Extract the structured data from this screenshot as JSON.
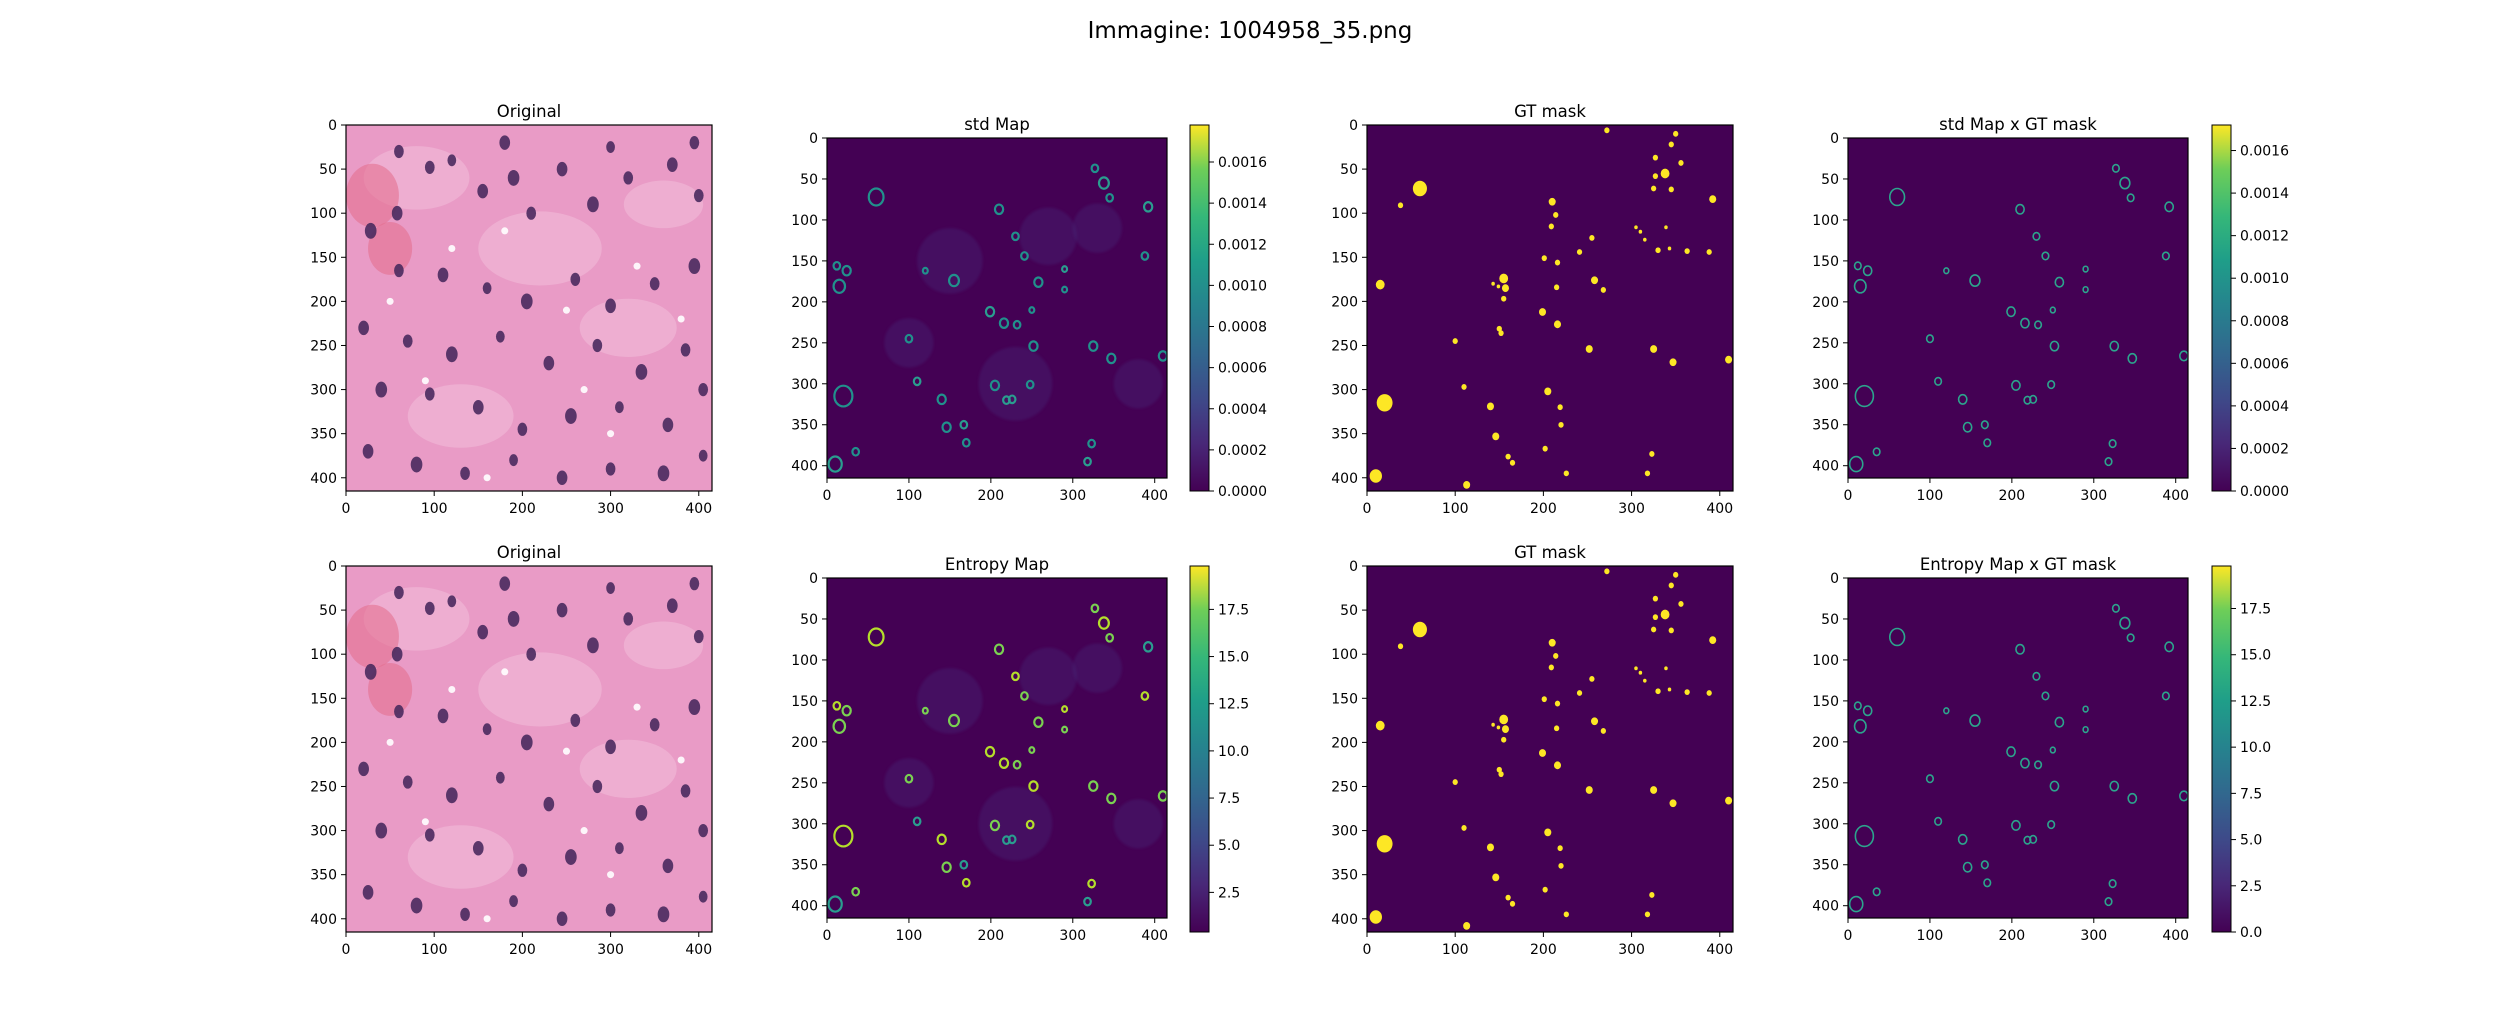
{
  "figure": {
    "suptitle": "Immagine: 1004958_35.png"
  },
  "colors": {
    "viridis_low": "#440154",
    "viridis_mid": "#21918c",
    "viridis_high": "#fde725",
    "he_background": "#e99bc6",
    "he_nuclei": "#4a2a5e"
  },
  "chart_data": [
    {
      "type": "heatmap",
      "id": "r0c0",
      "title": "Original",
      "xlim": [
        0,
        415
      ],
      "ylim": [
        415,
        0
      ],
      "xticks": [
        0,
        100,
        200,
        300,
        400
      ],
      "yticks": [
        0,
        50,
        100,
        150,
        200,
        250,
        300,
        350,
        400
      ],
      "image": "H&E histology tile"
    },
    {
      "type": "heatmap",
      "id": "r0c1",
      "title": "std Map",
      "xlim": [
        0,
        415
      ],
      "ylim": [
        415,
        0
      ],
      "xticks": [
        0,
        100,
        200,
        300,
        400
      ],
      "yticks": [
        0,
        50,
        100,
        150,
        200,
        250,
        300,
        350,
        400
      ],
      "colormap": "viridis",
      "colorbar": {
        "range": [
          0,
          0.00178
        ],
        "ticks": [
          "0.0000",
          "0.0002",
          "0.0004",
          "0.0006",
          "0.0008",
          "0.0010",
          "0.0012",
          "0.0014",
          "0.0016"
        ]
      }
    },
    {
      "type": "heatmap",
      "id": "r0c2",
      "title": "GT mask",
      "xlim": [
        0,
        415
      ],
      "ylim": [
        415,
        0
      ],
      "xticks": [
        0,
        100,
        200,
        300,
        400
      ],
      "yticks": [
        0,
        50,
        100,
        150,
        200,
        250,
        300,
        350,
        400
      ],
      "colormap": "viridis"
    },
    {
      "type": "heatmap",
      "id": "r0c3",
      "title": "std Map x GT mask",
      "xlim": [
        0,
        415
      ],
      "ylim": [
        415,
        0
      ],
      "xticks": [
        0,
        100,
        200,
        300,
        400
      ],
      "yticks": [
        0,
        50,
        100,
        150,
        200,
        250,
        300,
        350,
        400
      ],
      "colormap": "viridis",
      "colorbar": {
        "range": [
          0,
          0.00172
        ],
        "ticks": [
          "0.0000",
          "0.0002",
          "0.0004",
          "0.0006",
          "0.0008",
          "0.0010",
          "0.0012",
          "0.0014",
          "0.0016"
        ]
      }
    },
    {
      "type": "heatmap",
      "id": "r1c0",
      "title": "Original",
      "xlim": [
        0,
        415
      ],
      "ylim": [
        415,
        0
      ],
      "xticks": [
        0,
        100,
        200,
        300,
        400
      ],
      "yticks": [
        0,
        50,
        100,
        150,
        200,
        250,
        300,
        350,
        400
      ],
      "image": "H&E histology tile"
    },
    {
      "type": "heatmap",
      "id": "r1c1",
      "title": "Entropy Map",
      "xlim": [
        0,
        415
      ],
      "ylim": [
        415,
        0
      ],
      "xticks": [
        0,
        100,
        200,
        300,
        400
      ],
      "yticks": [
        0,
        50,
        100,
        150,
        200,
        250,
        300,
        350,
        400
      ],
      "colormap": "viridis",
      "colorbar": {
        "range": [
          0.4,
          19.8
        ],
        "ticks": [
          "2.5",
          "5.0",
          "7.5",
          "10.0",
          "12.5",
          "15.0",
          "17.5"
        ]
      }
    },
    {
      "type": "heatmap",
      "id": "r1c2",
      "title": "GT mask",
      "xlim": [
        0,
        415
      ],
      "ylim": [
        415,
        0
      ],
      "xticks": [
        0,
        100,
        200,
        300,
        400
      ],
      "yticks": [
        0,
        50,
        100,
        150,
        200,
        250,
        300,
        350,
        400
      ],
      "colormap": "viridis"
    },
    {
      "type": "heatmap",
      "id": "r1c3",
      "title": "Entropy Map x GT mask",
      "xlim": [
        0,
        415
      ],
      "ylim": [
        415,
        0
      ],
      "xticks": [
        0,
        100,
        200,
        300,
        400
      ],
      "yticks": [
        0,
        50,
        100,
        150,
        200,
        250,
        300,
        350,
        400
      ],
      "colormap": "viridis",
      "colorbar": {
        "range": [
          0,
          19.8
        ],
        "ticks": [
          "0.0",
          "2.5",
          "5.0",
          "7.5",
          "10.0",
          "12.5",
          "15.0",
          "17.5"
        ]
      }
    }
  ],
  "nuclei_yellow": [
    [
      20,
      315,
      9
    ],
    [
      10,
      398,
      7
    ],
    [
      15,
      181,
      5
    ],
    [
      60,
      72,
      8
    ],
    [
      38,
      91,
      3
    ],
    [
      100,
      245,
      3
    ],
    [
      110,
      297,
      3
    ],
    [
      113,
      408,
      4
    ],
    [
      140,
      319,
      4
    ],
    [
      146,
      353,
      4
    ],
    [
      150,
      231,
      3
    ],
    [
      152,
      236,
      3
    ],
    [
      155,
      174,
      5
    ],
    [
      155,
      197,
      3
    ],
    [
      157,
      185,
      4
    ],
    [
      165,
      383,
      3
    ],
    [
      143,
      180,
      2
    ],
    [
      149,
      183,
      2
    ],
    [
      160,
      376,
      3
    ],
    [
      199,
      212,
      4
    ],
    [
      201,
      151,
      3
    ],
    [
      202,
      367,
      3
    ],
    [
      205,
      302,
      4
    ],
    [
      216,
      226,
      4
    ],
    [
      209,
      115,
      3
    ],
    [
      210,
      87,
      4
    ],
    [
      214,
      102,
      3
    ],
    [
      215,
      184,
      3
    ],
    [
      216,
      156,
      3
    ],
    [
      219,
      320,
      3
    ],
    [
      220,
      340,
      3
    ],
    [
      226,
      395,
      3
    ],
    [
      241,
      144,
      3
    ],
    [
      252,
      254,
      4
    ],
    [
      255,
      128,
      3
    ],
    [
      258,
      176,
      4
    ],
    [
      268,
      187,
      3
    ],
    [
      272,
      6,
      3
    ],
    [
      305,
      116,
      2
    ],
    [
      310,
      121,
      2
    ],
    [
      315,
      130,
      2
    ],
    [
      318,
      395,
      3
    ],
    [
      323,
      373,
      3
    ],
    [
      325,
      254,
      4
    ],
    [
      325,
      72,
      3
    ],
    [
      327,
      58,
      3
    ],
    [
      327,
      37,
      3
    ],
    [
      330,
      142,
      3
    ],
    [
      338,
      55,
      5
    ],
    [
      339,
      116,
      2
    ],
    [
      343,
      140,
      2
    ],
    [
      345,
      73,
      3
    ],
    [
      345,
      22,
      3
    ],
    [
      347,
      269,
      4
    ],
    [
      350,
      10,
      3
    ],
    [
      356,
      43,
      3
    ],
    [
      363,
      143,
      3
    ],
    [
      388,
      144,
      3
    ],
    [
      392,
      84,
      4
    ],
    [
      410,
      266,
      4
    ]
  ],
  "nuclei_rings": [
    [
      20,
      315,
      10
    ],
    [
      10,
      398,
      7
    ],
    [
      15,
      181,
      6
    ],
    [
      60,
      72,
      8
    ],
    [
      100,
      245,
      3
    ],
    [
      110,
      297,
      3
    ],
    [
      140,
      319,
      4
    ],
    [
      146,
      353,
      4
    ],
    [
      155,
      174,
      5
    ],
    [
      199,
      212,
      4
    ],
    [
      205,
      302,
      4
    ],
    [
      210,
      87,
      4
    ],
    [
      216,
      226,
      4
    ],
    [
      219,
      320,
      3
    ],
    [
      241,
      144,
      3
    ],
    [
      252,
      254,
      4
    ],
    [
      258,
      176,
      4
    ],
    [
      318,
      395,
      3
    ],
    [
      323,
      373,
      3
    ],
    [
      325,
      254,
      4
    ],
    [
      327,
      37,
      3
    ],
    [
      338,
      55,
      5
    ],
    [
      345,
      73,
      3
    ],
    [
      347,
      269,
      4
    ],
    [
      388,
      144,
      3
    ],
    [
      392,
      84,
      4
    ],
    [
      410,
      266,
      4
    ],
    [
      12,
      156,
      3
    ],
    [
      24,
      162,
      4
    ],
    [
      167,
      350,
      3
    ],
    [
      170,
      372,
      3
    ],
    [
      232,
      228,
      3
    ],
    [
      250,
      210,
      2
    ],
    [
      290,
      160,
      2
    ],
    [
      120,
      162,
      2
    ],
    [
      35,
      383,
      3
    ],
    [
      248,
      301,
      3
    ],
    [
      226,
      319,
      3
    ],
    [
      290,
      185,
      2
    ],
    [
      230,
      120,
      3
    ]
  ],
  "he_nuclei": [
    [
      28,
      120,
      12
    ],
    [
      58,
      100,
      11
    ],
    [
      95,
      48,
      10
    ],
    [
      120,
      40,
      9
    ],
    [
      155,
      75,
      11
    ],
    [
      190,
      60,
      12
    ],
    [
      210,
      100,
      10
    ],
    [
      245,
      50,
      11
    ],
    [
      280,
      90,
      12
    ],
    [
      320,
      60,
      10
    ],
    [
      370,
      45,
      11
    ],
    [
      400,
      80,
      10
    ],
    [
      60,
      165,
      10
    ],
    [
      110,
      170,
      11
    ],
    [
      160,
      185,
      9
    ],
    [
      205,
      200,
      12
    ],
    [
      260,
      175,
      10
    ],
    [
      300,
      205,
      11
    ],
    [
      350,
      180,
      10
    ],
    [
      395,
      160,
      12
    ],
    [
      20,
      230,
      11
    ],
    [
      70,
      245,
      10
    ],
    [
      120,
      260,
      12
    ],
    [
      175,
      240,
      9
    ],
    [
      230,
      270,
      11
    ],
    [
      285,
      250,
      10
    ],
    [
      335,
      280,
      12
    ],
    [
      385,
      255,
      10
    ],
    [
      40,
      300,
      12
    ],
    [
      95,
      305,
      10
    ],
    [
      150,
      320,
      11
    ],
    [
      200,
      345,
      10
    ],
    [
      255,
      330,
      12
    ],
    [
      310,
      320,
      9
    ],
    [
      365,
      340,
      11
    ],
    [
      405,
      300,
      10
    ],
    [
      25,
      370,
      11
    ],
    [
      80,
      385,
      12
    ],
    [
      135,
      395,
      10
    ],
    [
      190,
      380,
      9
    ],
    [
      245,
      400,
      11
    ],
    [
      300,
      390,
      10
    ],
    [
      360,
      395,
      12
    ],
    [
      405,
      375,
      9
    ],
    [
      60,
      30,
      10
    ],
    [
      180,
      20,
      11
    ],
    [
      300,
      25,
      9
    ],
    [
      395,
      20,
      10
    ]
  ]
}
